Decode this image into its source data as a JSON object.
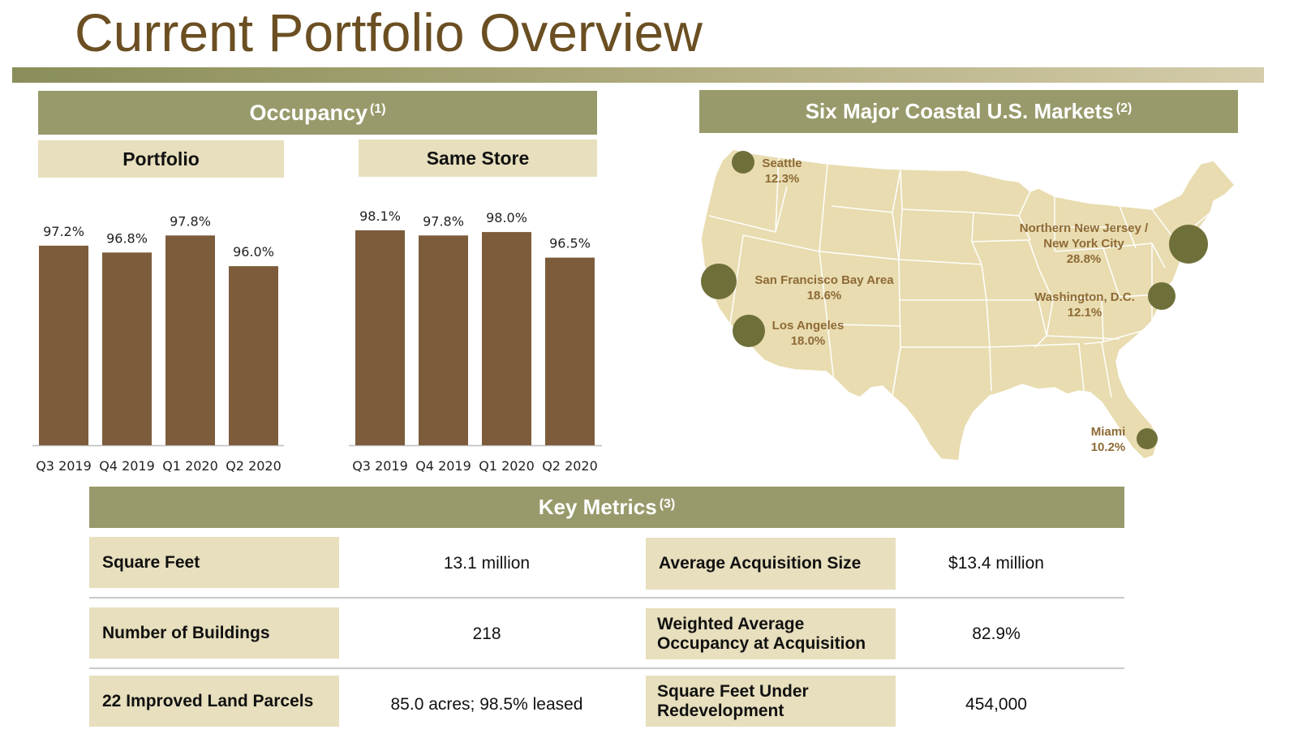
{
  "page": {
    "title": "Current Portfolio Overview"
  },
  "occupancy": {
    "header": "Occupancy",
    "footnote": "(1)",
    "portfolio_label": "Portfolio",
    "same_store_label": "Same Store"
  },
  "chart_data": [
    {
      "type": "bar",
      "title": "Portfolio",
      "categories": [
        "Q3 2019",
        "Q4 2019",
        "Q1 2020",
        "Q2 2020"
      ],
      "values": [
        97.2,
        96.8,
        97.8,
        96.0
      ],
      "data_labels": [
        "97.2%",
        "96.8%",
        "97.8%",
        "96.0%"
      ],
      "color": "#7d5c3c"
    },
    {
      "type": "bar",
      "title": "Same Store",
      "categories": [
        "Q3 2019",
        "Q4 2019",
        "Q1 2020",
        "Q2 2020"
      ],
      "values": [
        98.1,
        97.8,
        98.0,
        96.5
      ],
      "data_labels": [
        "98.1%",
        "97.8%",
        "98.0%",
        "96.5%"
      ],
      "color": "#7d5c3c"
    }
  ],
  "markets": {
    "header": "Six Major Coastal U.S. Markets",
    "footnote": "(2)",
    "items": [
      {
        "name": "Seattle",
        "pct": "12.3%"
      },
      {
        "name": "San Francisco Bay Area",
        "pct": "18.6%"
      },
      {
        "name": "Los Angeles",
        "pct": "18.0%"
      },
      {
        "name": "Northern New Jersey /",
        "name2": "New York City",
        "pct": "28.8%"
      },
      {
        "name": "Washington, D.C.",
        "pct": "12.1%"
      },
      {
        "name": "Miami",
        "pct": "10.2%"
      }
    ],
    "colors": {
      "land": "#e8dcb0",
      "border": "#ffffff",
      "marker": "#6f6f3a",
      "label": "#8e6a35"
    }
  },
  "key_metrics": {
    "header": "Key Metrics",
    "footnote": "(3)",
    "rows": [
      {
        "label": "Square Feet",
        "value": "13.1 million",
        "label2": "Average Acquisition Size",
        "value2": "$13.4 million"
      },
      {
        "label": "Number of Buildings",
        "value": "218",
        "label2a": "Weighted Average",
        "label2b": "Occupancy at Acquisition",
        "value2": "82.9%"
      },
      {
        "label": "22 Improved Land Parcels",
        "value": "85.0 acres; 98.5% leased",
        "label2a": "Square Feet Under",
        "label2b": "Redevelopment",
        "value2": "454,000"
      }
    ]
  },
  "colors": {
    "title": "#6b4f22",
    "band": "#999a6b",
    "subband": "#e7dfbd",
    "bar": "#7d5c3c"
  }
}
